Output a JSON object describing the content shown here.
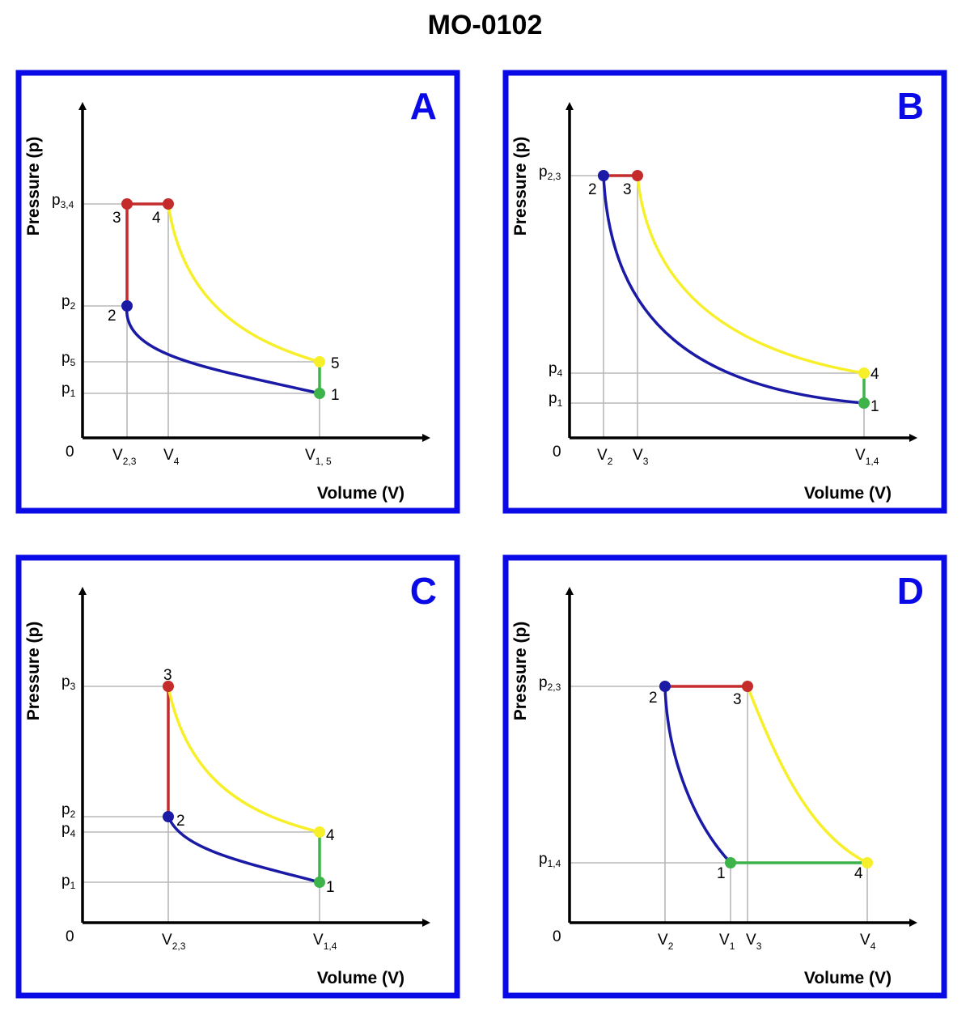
{
  "title": "MO-0102",
  "axes": {
    "x_title": "Volume (V)",
    "y_title": "Pressure (p)",
    "origin": "0"
  },
  "colors": {
    "frame": "#0a0ae6",
    "blue": "#1a1aa6",
    "yellow": "#f7ef2a",
    "red": "#c42b2b",
    "green": "#3db34a"
  },
  "panels": {
    "A": {
      "letter": "A",
      "y_ticks": [
        {
          "base": "p",
          "sub": "3,4"
        },
        {
          "base": "p",
          "sub": "2"
        },
        {
          "base": "p",
          "sub": "5"
        },
        {
          "base": "p",
          "sub": "1"
        }
      ],
      "x_ticks": [
        {
          "base": "V",
          "sub": "2,3"
        },
        {
          "base": "V",
          "sub": "4"
        },
        {
          "base": "V",
          "sub": "1, 5"
        }
      ],
      "points": [
        "1",
        "2",
        "3",
        "4",
        "5"
      ]
    },
    "B": {
      "letter": "B",
      "y_ticks": [
        {
          "base": "p",
          "sub": "2,3"
        },
        {
          "base": "p",
          "sub": "4"
        },
        {
          "base": "p",
          "sub": "1"
        }
      ],
      "x_ticks": [
        {
          "base": "V",
          "sub": "2"
        },
        {
          "base": "V",
          "sub": "3"
        },
        {
          "base": "V",
          "sub": "1,4"
        }
      ],
      "points": [
        "1",
        "2",
        "3",
        "4"
      ]
    },
    "C": {
      "letter": "C",
      "y_ticks": [
        {
          "base": "p",
          "sub": "3"
        },
        {
          "base": "p",
          "sub": "2"
        },
        {
          "base": "p",
          "sub": "4"
        },
        {
          "base": "p",
          "sub": "1"
        }
      ],
      "x_ticks": [
        {
          "base": "V",
          "sub": "2,3"
        },
        {
          "base": "V",
          "sub": "1,4"
        }
      ],
      "points": [
        "1",
        "2",
        "3",
        "4"
      ]
    },
    "D": {
      "letter": "D",
      "y_ticks": [
        {
          "base": "p",
          "sub": "2,3"
        },
        {
          "base": "p",
          "sub": "1,4"
        }
      ],
      "x_ticks": [
        {
          "base": "V",
          "sub": "2"
        },
        {
          "base": "V",
          "sub": "1"
        },
        {
          "base": "V",
          "sub": "3"
        },
        {
          "base": "V",
          "sub": "4"
        }
      ],
      "points": [
        "1",
        "2",
        "3",
        "4"
      ]
    }
  }
}
